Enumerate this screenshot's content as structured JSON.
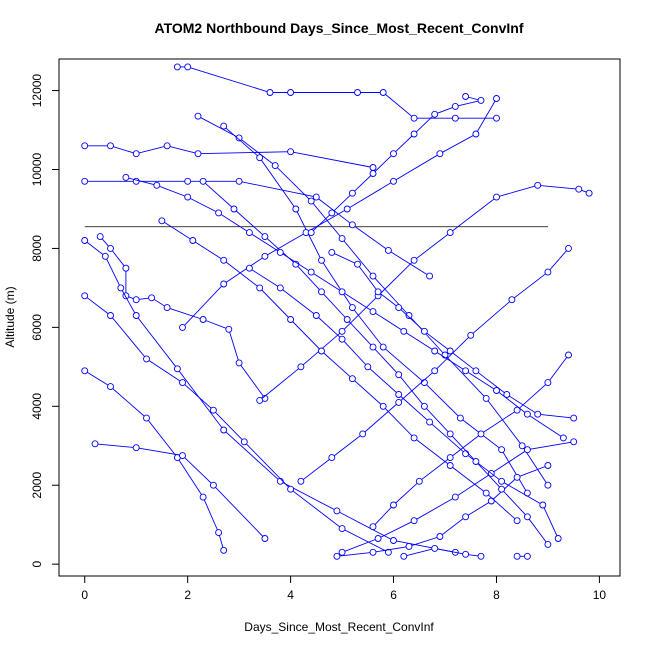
{
  "chart_data": {
    "type": "scatter",
    "title": "ATOM2 Northbound Days_Since_Most_Recent_ConvInf",
    "xlabel": "Days_Since_Most_Recent_ConvInf",
    "ylabel": "Altitude (m)",
    "xlim": [
      -0.5,
      10.4
    ],
    "ylim": [
      -300,
      12800
    ],
    "xticks": [
      0,
      2,
      4,
      6,
      8,
      10
    ],
    "yticks": [
      0,
      2000,
      4000,
      6000,
      8000,
      10000,
      12000
    ],
    "grid": false,
    "legend": "none",
    "colors": {
      "series": "#0000ff",
      "reference_line": "#000000"
    },
    "reference_line": {
      "y": 8550,
      "x_from": 0,
      "x_to": 9
    },
    "series": [
      {
        "points": [
          [
            1.8,
            12600
          ],
          [
            2.0,
            12600
          ],
          [
            3.6,
            11950
          ],
          [
            4.0,
            11950
          ],
          [
            5.3,
            11950
          ],
          [
            5.8,
            11950
          ],
          [
            6.4,
            11300
          ],
          [
            7.2,
            11300
          ],
          [
            8.0,
            11300
          ]
        ]
      },
      {
        "points": [
          [
            0,
            10600
          ],
          [
            0.5,
            10600
          ],
          [
            1.0,
            10400
          ],
          [
            1.6,
            10600
          ],
          [
            2.2,
            10400
          ],
          [
            4.0,
            10450
          ],
          [
            5.6,
            10050
          ]
        ]
      },
      {
        "points": [
          [
            0,
            9700
          ],
          [
            1.0,
            9700
          ],
          [
            2.0,
            9700
          ],
          [
            3.0,
            9700
          ],
          [
            4.5,
            9300
          ],
          [
            5.2,
            8600
          ],
          [
            5.9,
            7950
          ],
          [
            6.7,
            7300
          ]
        ]
      },
      {
        "points": [
          [
            0.3,
            8300
          ],
          [
            0.5,
            8000
          ],
          [
            0.8,
            7500
          ],
          [
            0.8,
            6800
          ],
          [
            1.0,
            6700
          ],
          [
            1.3,
            6750
          ],
          [
            1.6,
            6500
          ],
          [
            2.3,
            6200
          ],
          [
            2.8,
            5950
          ],
          [
            3.0,
            5100
          ],
          [
            3.5,
            4200
          ]
        ]
      },
      {
        "points": [
          [
            0,
            8200
          ],
          [
            0.4,
            7800
          ],
          [
            0.7,
            7000
          ],
          [
            1.0,
            6300
          ],
          [
            1.8,
            4950
          ],
          [
            2.7,
            3400
          ],
          [
            3.8,
            2100
          ],
          [
            4.9,
            1350
          ],
          [
            6.0,
            600
          ],
          [
            7.2,
            300
          ]
        ]
      },
      {
        "points": [
          [
            0,
            6800
          ],
          [
            0.5,
            6300
          ],
          [
            1.2,
            5200
          ],
          [
            1.9,
            4600
          ],
          [
            2.5,
            3900
          ],
          [
            3.1,
            3100
          ],
          [
            4.0,
            1900
          ],
          [
            5.0,
            900
          ],
          [
            5.9,
            300
          ]
        ]
      },
      {
        "points": [
          [
            0,
            4900
          ],
          [
            0.5,
            4500
          ],
          [
            1.2,
            3700
          ],
          [
            1.8,
            2700
          ],
          [
            2.3,
            1700
          ],
          [
            2.6,
            800
          ],
          [
            2.7,
            350
          ]
        ]
      },
      {
        "points": [
          [
            0.2,
            3050
          ],
          [
            1.0,
            2950
          ],
          [
            1.9,
            2750
          ],
          [
            2.5,
            2000
          ],
          [
            3.5,
            650
          ]
        ]
      },
      {
        "points": [
          [
            2.2,
            11350
          ],
          [
            3.0,
            10800
          ],
          [
            3.7,
            10100
          ],
          [
            4.4,
            9200
          ],
          [
            5.0,
            8250
          ],
          [
            5.6,
            7300
          ],
          [
            6.3,
            6300
          ],
          [
            7.0,
            5300
          ],
          [
            7.8,
            4200
          ],
          [
            8.5,
            3000
          ],
          [
            9.0,
            2000
          ]
        ]
      },
      {
        "points": [
          [
            2.7,
            11100
          ],
          [
            3.4,
            10300
          ],
          [
            4.1,
            9000
          ],
          [
            4.6,
            7700
          ],
          [
            5.2,
            6500
          ],
          [
            5.8,
            5500
          ],
          [
            6.6,
            4600
          ],
          [
            7.3,
            3700
          ],
          [
            8.1,
            2900
          ],
          [
            8.6,
            1800
          ]
        ]
      },
      {
        "points": [
          [
            1.9,
            6000
          ],
          [
            2.7,
            7100
          ],
          [
            3.5,
            7800
          ],
          [
            4.3,
            8400
          ],
          [
            5.1,
            9000
          ],
          [
            6.0,
            9700
          ],
          [
            6.9,
            10400
          ],
          [
            7.6,
            10900
          ],
          [
            8.0,
            11800
          ]
        ]
      },
      {
        "points": [
          [
            3.4,
            4150
          ],
          [
            4.2,
            5000
          ],
          [
            5.0,
            5900
          ],
          [
            5.7,
            6800
          ],
          [
            6.4,
            7700
          ],
          [
            7.1,
            8400
          ],
          [
            8.0,
            9300
          ],
          [
            8.8,
            9600
          ],
          [
            9.6,
            9500
          ],
          [
            9.8,
            9400
          ]
        ]
      },
      {
        "points": [
          [
            4.2,
            2100
          ],
          [
            4.8,
            2700
          ],
          [
            5.4,
            3300
          ],
          [
            6.1,
            4100
          ],
          [
            6.8,
            4900
          ],
          [
            7.5,
            5800
          ],
          [
            8.3,
            6700
          ],
          [
            9.0,
            7400
          ],
          [
            9.4,
            8000
          ]
        ]
      },
      {
        "points": [
          [
            5.6,
            950
          ],
          [
            6.0,
            1500
          ],
          [
            6.5,
            2100
          ],
          [
            7.1,
            2700
          ],
          [
            7.7,
            3300
          ],
          [
            8.4,
            3900
          ],
          [
            9.0,
            4600
          ],
          [
            9.4,
            5300
          ]
        ]
      },
      {
        "points": [
          [
            4.9,
            200
          ],
          [
            5.6,
            300
          ],
          [
            6.3,
            450
          ],
          [
            6.9,
            700
          ],
          [
            7.4,
            1200
          ],
          [
            7.9,
            1600
          ],
          [
            8.4,
            2200
          ],
          [
            9.0,
            2500
          ]
        ]
      },
      {
        "points": [
          [
            5.0,
            300
          ],
          [
            5.7,
            650
          ],
          [
            6.4,
            1100
          ],
          [
            7.2,
            1700
          ],
          [
            7.9,
            2300
          ],
          [
            8.6,
            2900
          ],
          [
            9.5,
            3100
          ]
        ]
      },
      {
        "points": [
          [
            6.2,
            200
          ],
          [
            6.8,
            400
          ],
          [
            7.4,
            250
          ],
          [
            7.7,
            200
          ]
        ]
      },
      {
        "points": [
          [
            8.4,
            200
          ],
          [
            8.6,
            200
          ]
        ]
      },
      {
        "points": [
          [
            4.8,
            7900
          ],
          [
            5.3,
            7600
          ],
          [
            5.7,
            6900
          ],
          [
            6.1,
            6500
          ],
          [
            6.6,
            5900
          ],
          [
            7.1,
            5400
          ],
          [
            7.6,
            4900
          ],
          [
            8.2,
            4300
          ],
          [
            8.8,
            3800
          ],
          [
            9.5,
            3700
          ]
        ]
      },
      {
        "points": [
          [
            3.2,
            7500
          ],
          [
            3.8,
            7000
          ],
          [
            4.5,
            6300
          ],
          [
            5.0,
            5700
          ],
          [
            5.5,
            5000
          ],
          [
            6.1,
            4300
          ],
          [
            6.7,
            3600
          ],
          [
            7.4,
            2800
          ],
          [
            8.1,
            2100
          ],
          [
            8.9,
            1500
          ],
          [
            9.2,
            650
          ]
        ]
      },
      {
        "points": [
          [
            1.5,
            8700
          ],
          [
            2.1,
            8200
          ],
          [
            2.7,
            7700
          ],
          [
            3.4,
            7000
          ],
          [
            4.0,
            6200
          ],
          [
            4.6,
            5400
          ],
          [
            5.2,
            4700
          ],
          [
            5.8,
            4000
          ],
          [
            6.4,
            3200
          ],
          [
            7.1,
            2500
          ],
          [
            7.8,
            1800
          ],
          [
            8.4,
            1100
          ]
        ]
      },
      {
        "points": [
          [
            2.3,
            9700
          ],
          [
            2.9,
            9000
          ],
          [
            3.5,
            8300
          ],
          [
            4.1,
            7600
          ],
          [
            4.6,
            6900
          ],
          [
            5.1,
            6200
          ],
          [
            5.6,
            5500
          ],
          [
            6.1,
            4800
          ],
          [
            6.6,
            4000
          ],
          [
            7.1,
            3300
          ],
          [
            7.6,
            2600
          ],
          [
            8.1,
            1900
          ],
          [
            8.6,
            1200
          ],
          [
            9.0,
            500
          ]
        ]
      },
      {
        "points": [
          [
            7.4,
            11850
          ],
          [
            7.7,
            11750
          ],
          [
            7.2,
            11600
          ],
          [
            6.8,
            11400
          ],
          [
            6.4,
            10900
          ],
          [
            6.0,
            10400
          ],
          [
            5.6,
            9900
          ],
          [
            5.2,
            9400
          ],
          [
            4.8,
            8900
          ],
          [
            4.4,
            8400
          ]
        ]
      },
      {
        "points": [
          [
            0.8,
            9800
          ],
          [
            1.4,
            9600
          ],
          [
            2.0,
            9300
          ],
          [
            2.6,
            8900
          ],
          [
            3.2,
            8400
          ],
          [
            3.8,
            7900
          ],
          [
            4.4,
            7400
          ],
          [
            5.0,
            6900
          ],
          [
            5.6,
            6400
          ],
          [
            6.2,
            5900
          ],
          [
            6.8,
            5400
          ],
          [
            7.4,
            4900
          ],
          [
            8.0,
            4400
          ],
          [
            8.6,
            3800
          ],
          [
            9.3,
            3200
          ]
        ]
      }
    ]
  }
}
